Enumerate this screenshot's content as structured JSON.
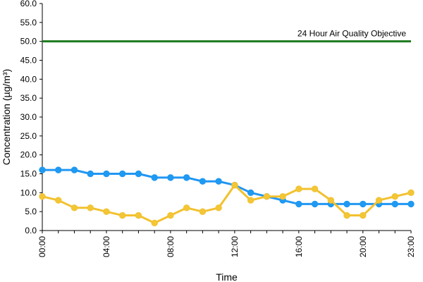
{
  "chart_data": {
    "type": "line",
    "title": "",
    "xlabel": "Time",
    "ylabel": "Concentration (µg/m³)",
    "ylim": [
      0,
      60
    ],
    "yticks": [
      "0.0",
      "5.0",
      "10.0",
      "15.0",
      "20.0",
      "25.0",
      "30.0",
      "35.0",
      "40.0",
      "45.0",
      "50.0",
      "55.0",
      "60.0"
    ],
    "xticks": [
      "00:00",
      "04:00",
      "08:00",
      "12:00",
      "16:00",
      "20:00",
      "23:00"
    ],
    "grid": false,
    "legend": "none",
    "x": [
      "00:00",
      "01:00",
      "02:00",
      "03:00",
      "04:00",
      "05:00",
      "06:00",
      "07:00",
      "08:00",
      "09:00",
      "10:00",
      "11:00",
      "12:00",
      "13:00",
      "14:00",
      "15:00",
      "16:00",
      "17:00",
      "18:00",
      "19:00",
      "20:00",
      "21:00",
      "22:00",
      "23:00"
    ],
    "series": [
      {
        "color": "#2196f3",
        "marker_color": "#1e9af0",
        "values": [
          16,
          16,
          16,
          15,
          15,
          15,
          15,
          14,
          14,
          14,
          13,
          13,
          12,
          10,
          9,
          8,
          7,
          7,
          7,
          7,
          7,
          7,
          7,
          7
        ]
      },
      {
        "color": "#f2c12e",
        "marker_color": "#f3c637",
        "values": [
          9,
          8,
          6,
          6,
          5,
          4,
          4,
          2,
          4,
          6,
          5,
          6,
          12,
          8,
          9,
          9,
          11,
          11,
          8,
          4,
          4,
          8,
          9,
          10
        ]
      }
    ],
    "reference_line": {
      "value": 50,
      "label": "24 Hour Air Quality Objective",
      "color": "#1e7a1e"
    }
  }
}
